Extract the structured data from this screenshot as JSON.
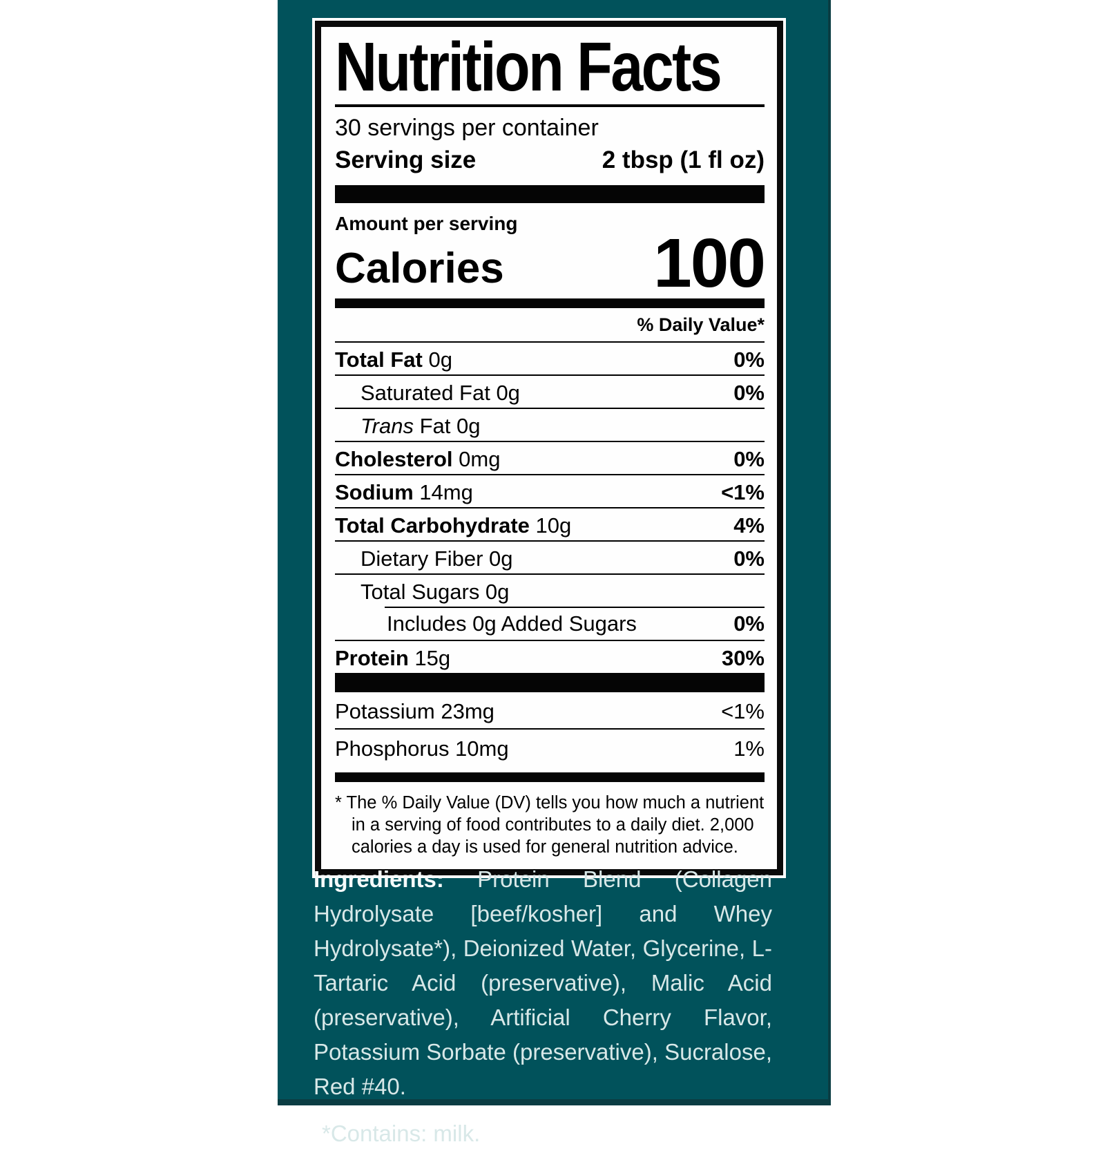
{
  "colors": {
    "panel_teal": "#01525b",
    "panel_edge": "#0b3d43",
    "label_bg": "#fefefe",
    "label_border": "#0a0a0a",
    "ingredients_text": "#d8e8e8"
  },
  "label": {
    "title": "Nutrition Facts",
    "servings_per_container": "30 servings per container",
    "serving_size_label": "Serving size",
    "serving_size_value": "2 tbsp (1 fl oz)",
    "amount_per_serving": "Amount per serving",
    "calories_label": "Calories",
    "calories_value": "100",
    "daily_value_header": "% Daily Value*",
    "rows": [
      {
        "bold": "Total Fat",
        "rest": " 0g",
        "dv": "0%"
      },
      {
        "rest": "Saturated Fat 0g",
        "dv": "0%"
      },
      {
        "italic": "Trans",
        "rest": " Fat 0g",
        "dv": ""
      },
      {
        "bold": "Cholesterol",
        "rest": " 0mg",
        "dv": "0%"
      },
      {
        "bold": "Sodium",
        "rest": " 14mg",
        "dv": "<1%"
      },
      {
        "bold": "Total Carbohydrate",
        "rest": " 10g",
        "dv": "4%"
      },
      {
        "rest": "Dietary Fiber 0g",
        "dv": "0%"
      },
      {
        "rest": "Total Sugars 0g",
        "dv": ""
      },
      {
        "rest": "Includes 0g Added Sugars",
        "dv": "0%"
      },
      {
        "bold": "Protein",
        "rest": " 15g",
        "dv": "30%"
      }
    ],
    "minerals": [
      {
        "name": "Potassium 23mg",
        "dv": "<1%"
      },
      {
        "name": "Phosphorus 10mg",
        "dv": "1%"
      }
    ],
    "footnote": "* The % Daily Value (DV) tells you how much a nutrient in a serving of food contributes to a daily diet. 2,000 calories a day is used for general nutrition advice."
  },
  "ingredients": {
    "label": "Ingredients:",
    "text": "Protein Blend (Collagen Hydrolysate [beef/kosher] and Whey Hydrolysate*), Deionized Water, Glycerine, L-Tartaric Acid (preservative), Malic Acid (preservative), Artificial Cherry Flavor, Potassium Sorbate (preservative), Sucralose, Red #40.",
    "contains": "*Contains: milk."
  }
}
